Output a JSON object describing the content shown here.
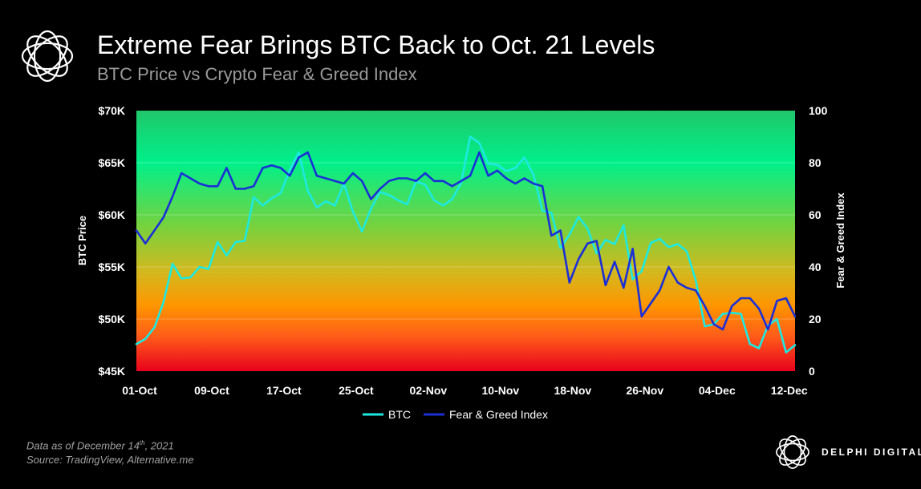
{
  "header": {
    "title": "Extreme Fear Brings BTC Back to Oct. 21 Levels",
    "subtitle": "BTC Price vs Crypto Fear & Greed Index"
  },
  "footer": {
    "note_prefix": "Data as of December 14",
    "note_sup": "th",
    "note_suffix": ", 2021",
    "source": "Source:  TradingView, Alternative.me",
    "brand": "DELPHI DIGITAL"
  },
  "chart_data": {
    "type": "line",
    "x_tick_labels": [
      "01-Oct",
      "09-Oct",
      "17-Oct",
      "25-Oct",
      "02-Nov",
      "10-Nov",
      "18-Nov",
      "26-Nov",
      "04-Dec",
      "12-Dec"
    ],
    "y_left": {
      "label": "BTC Price",
      "ticks": [
        "$45K",
        "$50K",
        "$55K",
        "$60K",
        "$65K",
        "$70K"
      ],
      "range": [
        45000,
        70000
      ]
    },
    "y_right": {
      "label": "Fear & Greed Index",
      "ticks": [
        "0",
        "20",
        "40",
        "60",
        "80",
        "100"
      ],
      "range": [
        0,
        100
      ]
    },
    "x_range": [
      0,
      73
    ],
    "background": "vertical gradient green (top) to red (bottom)",
    "legend_position": "bottom-center",
    "series": [
      {
        "name": "BTC",
        "axis": "left",
        "color": "#1de9e0",
        "values": [
          [
            0,
            47600
          ],
          [
            1,
            48100
          ],
          [
            2,
            49200
          ],
          [
            3,
            51600
          ],
          [
            4,
            55300
          ],
          [
            5,
            53900
          ],
          [
            6,
            54000
          ],
          [
            7,
            55000
          ],
          [
            8,
            54800
          ],
          [
            9,
            57400
          ],
          [
            10,
            56100
          ],
          [
            11,
            57400
          ],
          [
            12,
            57500
          ],
          [
            13,
            61700
          ],
          [
            14,
            60900
          ],
          [
            15,
            61600
          ],
          [
            16,
            62100
          ],
          [
            17,
            64300
          ],
          [
            18,
            66000
          ],
          [
            19,
            62300
          ],
          [
            20,
            60700
          ],
          [
            21,
            61300
          ],
          [
            22,
            60900
          ],
          [
            23,
            63000
          ],
          [
            24,
            60300
          ],
          [
            25,
            58400
          ],
          [
            26,
            60600
          ],
          [
            27,
            62200
          ],
          [
            28,
            61900
          ],
          [
            29,
            61400
          ],
          [
            30,
            61000
          ],
          [
            31,
            63200
          ],
          [
            32,
            62900
          ],
          [
            33,
            61400
          ],
          [
            34,
            60900
          ],
          [
            35,
            61500
          ],
          [
            36,
            63100
          ],
          [
            37,
            67500
          ],
          [
            38,
            66900
          ],
          [
            39,
            64900
          ],
          [
            40,
            64800
          ],
          [
            41,
            64200
          ],
          [
            42,
            64500
          ],
          [
            43,
            65500
          ],
          [
            44,
            63900
          ],
          [
            45,
            60400
          ],
          [
            46,
            60200
          ],
          [
            47,
            56800
          ],
          [
            48,
            58100
          ],
          [
            49,
            59800
          ],
          [
            50,
            58700
          ],
          [
            51,
            56300
          ],
          [
            52,
            57600
          ],
          [
            53,
            57200
          ],
          [
            54,
            59000
          ],
          [
            55,
            53800
          ],
          [
            56,
            54600
          ],
          [
            57,
            57300
          ],
          [
            58,
            57700
          ],
          [
            59,
            56900
          ],
          [
            60,
            57200
          ],
          [
            61,
            56500
          ],
          [
            62,
            53700
          ],
          [
            63,
            49300
          ],
          [
            64,
            49500
          ],
          [
            65,
            50500
          ],
          [
            66,
            50600
          ],
          [
            67,
            50500
          ],
          [
            68,
            47600
          ],
          [
            69,
            47200
          ],
          [
            70,
            49400
          ],
          [
            71,
            50000
          ],
          [
            72,
            46800
          ],
          [
            73,
            47500
          ]
        ]
      },
      {
        "name": "Fear & Greed Index",
        "axis": "right",
        "color": "#1a2fd6",
        "values": [
          [
            0,
            54
          ],
          [
            1,
            49
          ],
          [
            2,
            54
          ],
          [
            3,
            59
          ],
          [
            4,
            67
          ],
          [
            5,
            76
          ],
          [
            6,
            74
          ],
          [
            7,
            72
          ],
          [
            8,
            71
          ],
          [
            9,
            71
          ],
          [
            10,
            78
          ],
          [
            11,
            70
          ],
          [
            12,
            70
          ],
          [
            13,
            71
          ],
          [
            14,
            78
          ],
          [
            15,
            79
          ],
          [
            16,
            78
          ],
          [
            17,
            75
          ],
          [
            18,
            82
          ],
          [
            19,
            84
          ],
          [
            20,
            75
          ],
          [
            21,
            74
          ],
          [
            22,
            73
          ],
          [
            23,
            72
          ],
          [
            24,
            76
          ],
          [
            25,
            73
          ],
          [
            26,
            66
          ],
          [
            27,
            70
          ],
          [
            28,
            73
          ],
          [
            29,
            74
          ],
          [
            30,
            74
          ],
          [
            31,
            73
          ],
          [
            32,
            76
          ],
          [
            33,
            73
          ],
          [
            34,
            73
          ],
          [
            35,
            71
          ],
          [
            36,
            73
          ],
          [
            37,
            75
          ],
          [
            38,
            84
          ],
          [
            39,
            75
          ],
          [
            40,
            77
          ],
          [
            41,
            74
          ],
          [
            42,
            72
          ],
          [
            43,
            74
          ],
          [
            44,
            72
          ],
          [
            45,
            71
          ],
          [
            46,
            52
          ],
          [
            47,
            54
          ],
          [
            48,
            34
          ],
          [
            49,
            43
          ],
          [
            50,
            49
          ],
          [
            51,
            50
          ],
          [
            52,
            33
          ],
          [
            53,
            42
          ],
          [
            54,
            32
          ],
          [
            55,
            47
          ],
          [
            56,
            21
          ],
          [
            57,
            26
          ],
          [
            58,
            31
          ],
          [
            59,
            40
          ],
          [
            60,
            34
          ],
          [
            61,
            32
          ],
          [
            62,
            31
          ],
          [
            63,
            25
          ],
          [
            64,
            18
          ],
          [
            65,
            16
          ],
          [
            66,
            25
          ],
          [
            67,
            28
          ],
          [
            68,
            28
          ],
          [
            69,
            24
          ],
          [
            70,
            16
          ],
          [
            71,
            27
          ],
          [
            72,
            28
          ],
          [
            73,
            21
          ]
        ]
      }
    ]
  }
}
